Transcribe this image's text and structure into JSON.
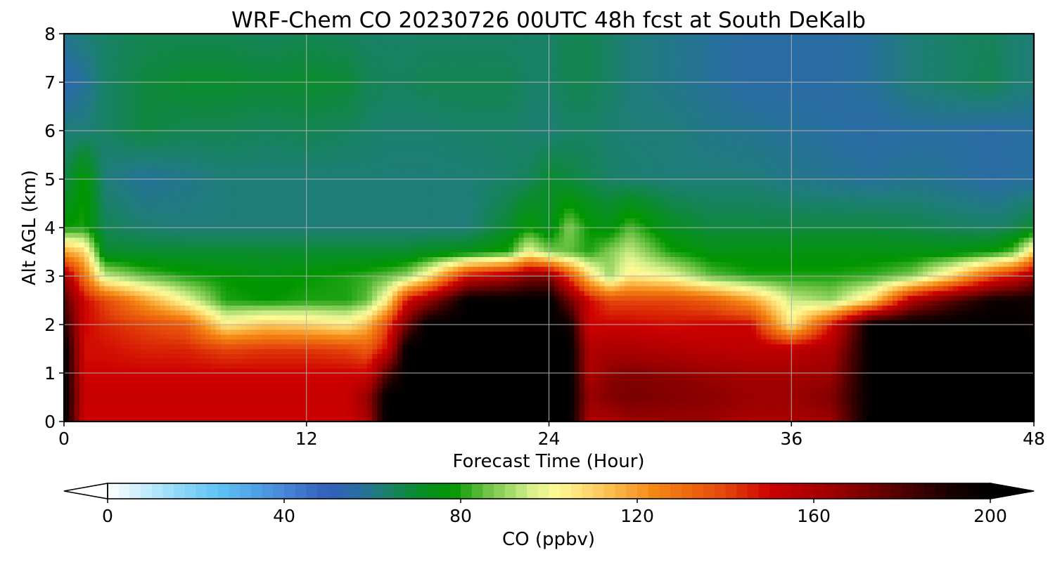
{
  "chart_data": {
    "type": "heatmap",
    "title": "WRF-Chem CO  20230726 00UTC 48h fcst at South DeKalb",
    "xlabel": "Forecast Time (Hour)",
    "ylabel": "Alt AGL (km)",
    "xlim": [
      0,
      48
    ],
    "ylim": [
      0,
      8
    ],
    "xticks": [
      0,
      12,
      24,
      36,
      48
    ],
    "yticks": [
      0,
      1,
      2,
      3,
      4,
      5,
      6,
      7,
      8
    ],
    "grid": true,
    "colorbar": {
      "label": "CO  (ppbv)",
      "min": 0,
      "max": 200,
      "ticks": [
        0,
        40,
        80,
        120,
        160,
        200
      ],
      "extend": "both",
      "orientation": "horizontal",
      "placement": "bottom"
    },
    "x_hours": [
      0,
      1,
      2,
      4,
      6,
      8,
      10,
      12,
      14,
      15,
      16,
      17,
      18,
      20,
      22,
      23,
      24,
      25,
      26,
      27,
      28,
      30,
      32,
      34,
      36,
      38,
      40,
      42,
      44,
      46,
      47,
      48
    ],
    "layers_km": [
      {
        "z": 0.0,
        "values": [
          200,
          150,
          150,
          150,
          150,
          150,
          150,
          150,
          150,
          160,
          200,
          200,
          200,
          200,
          200,
          200,
          200,
          200,
          160,
          160,
          165,
          165,
          165,
          160,
          160,
          165,
          200,
          200,
          200,
          200,
          200,
          200
        ]
      },
      {
        "z": 0.5,
        "values": [
          200,
          152,
          152,
          152,
          152,
          152,
          152,
          152,
          152,
          165,
          200,
          200,
          200,
          200,
          200,
          200,
          200,
          200,
          165,
          170,
          172,
          170,
          168,
          165,
          165,
          170,
          200,
          200,
          200,
          200,
          200,
          200
        ]
      },
      {
        "z": 1.0,
        "values": [
          200,
          150,
          150,
          150,
          150,
          150,
          150,
          150,
          150,
          150,
          180,
          200,
          200,
          200,
          200,
          200,
          200,
          200,
          160,
          168,
          170,
          168,
          165,
          162,
          162,
          165,
          200,
          200,
          200,
          200,
          200,
          200
        ]
      },
      {
        "z": 1.5,
        "values": [
          200,
          148,
          148,
          145,
          145,
          140,
          142,
          142,
          140,
          135,
          150,
          200,
          200,
          200,
          200,
          200,
          200,
          200,
          158,
          160,
          160,
          158,
          155,
          155,
          155,
          160,
          200,
          200,
          200,
          200,
          200,
          200
        ]
      },
      {
        "z": 2.0,
        "values": [
          190,
          150,
          145,
          140,
          135,
          105,
          112,
          110,
          105,
          115,
          140,
          175,
          200,
          200,
          200,
          200,
          200,
          195,
          150,
          150,
          150,
          148,
          150,
          150,
          105,
          148,
          200,
          200,
          200,
          200,
          200,
          195
        ]
      },
      {
        "z": 2.5,
        "values": [
          180,
          150,
          140,
          120,
          100,
          80,
          78,
          80,
          80,
          85,
          105,
          150,
          165,
          200,
          200,
          200,
          200,
          175,
          150,
          140,
          140,
          140,
          135,
          120,
          95,
          90,
          110,
          160,
          180,
          195,
          195,
          195
        ]
      },
      {
        "z": 3.0,
        "values": [
          165,
          130,
          95,
          85,
          80,
          78,
          76,
          78,
          80,
          82,
          85,
          90,
          105,
          150,
          160,
          170,
          170,
          140,
          110,
          90,
          105,
          100,
          85,
          80,
          80,
          80,
          82,
          88,
          110,
          140,
          150,
          165
        ]
      },
      {
        "z": 3.5,
        "values": [
          120,
          110,
          70,
          70,
          70,
          70,
          70,
          70,
          70,
          70,
          70,
          70,
          72,
          74,
          80,
          100,
          88,
          85,
          80,
          88,
          95,
          80,
          75,
          75,
          75,
          75,
          75,
          75,
          75,
          78,
          85,
          110
        ]
      },
      {
        "z": 4.0,
        "values": [
          78,
          80,
          66,
          63,
          62,
          62,
          62,
          62,
          62,
          62,
          62,
          62,
          62,
          62,
          70,
          78,
          72,
          88,
          78,
          75,
          84,
          72,
          68,
          68,
          68,
          68,
          68,
          67,
          65,
          64,
          66,
          70
        ]
      },
      {
        "z": 5.0,
        "values": [
          66,
          78,
          62,
          58,
          60,
          62,
          62,
          62,
          62,
          62,
          62,
          62,
          62,
          62,
          64,
          65,
          70,
          68,
          66,
          64,
          63,
          62,
          62,
          62,
          60,
          59,
          58,
          59,
          58,
          56,
          57,
          57
        ]
      },
      {
        "z": 6.0,
        "values": [
          62,
          62,
          64,
          68,
          66,
          66,
          65,
          66,
          65,
          64,
          63,
          63,
          63,
          64,
          64,
          63,
          62,
          64,
          64,
          63,
          62,
          62,
          60,
          59,
          58,
          57,
          56,
          57,
          57,
          56,
          57,
          57
        ]
      },
      {
        "z": 7.0,
        "values": [
          54,
          58,
          64,
          68,
          70,
          70,
          69,
          70,
          69,
          66,
          65,
          65,
          66,
          66,
          66,
          64,
          64,
          66,
          66,
          64,
          62,
          60,
          58,
          56,
          56,
          56,
          58,
          62,
          64,
          66,
          63,
          62
        ]
      },
      {
        "z": 8.0,
        "values": [
          60,
          62,
          64,
          66,
          66,
          66,
          65,
          66,
          65,
          64,
          64,
          64,
          64,
          64,
          64,
          64,
          64,
          66,
          66,
          64,
          62,
          60,
          58,
          56,
          56,
          56,
          58,
          62,
          64,
          65,
          63,
          62
        ]
      }
    ]
  },
  "colors": {
    "axes_edge": "#000000",
    "grid": "#b0b0b0",
    "background": "#ffffff"
  }
}
